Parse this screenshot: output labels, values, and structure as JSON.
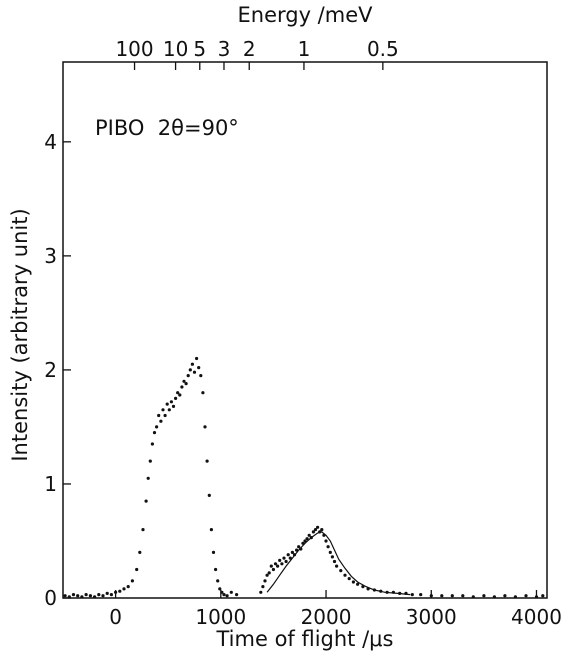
{
  "chart_data": {
    "type": "scatter",
    "annotation": "PIBO  2θ=90°",
    "xlabel": "Time of flight  /μs",
    "ylabel": "Intensity (arbitrary unit)",
    "top_axis_label": "Energy  /meV",
    "xlim": [
      -500,
      4100
    ],
    "ylim": [
      0,
      4.7
    ],
    "x_ticks": [
      0,
      1000,
      2000,
      3000,
      4000
    ],
    "x_tick_labels": [
      "0",
      "1000",
      "2000",
      "3000",
      "4000"
    ],
    "y_ticks": [
      0,
      1,
      2,
      3,
      4
    ],
    "y_tick_labels": [
      "0",
      "1",
      "2",
      "3",
      "4"
    ],
    "top_ticks": [
      {
        "label": "100",
        "time": 180
      },
      {
        "label": "10",
        "time": 570
      },
      {
        "label": "5",
        "time": 800
      },
      {
        "label": "3",
        "time": 1030
      },
      {
        "label": "2",
        "time": 1270
      },
      {
        "label": "1",
        "time": 1790
      },
      {
        "label": "0.5",
        "time": 2540
      }
    ],
    "grid": false,
    "series": [
      {
        "name": "",
        "points": [
          [
            -480,
            0.02
          ],
          [
            -440,
            0.01
          ],
          [
            -400,
            0.03
          ],
          [
            -360,
            0.02
          ],
          [
            -320,
            0.01
          ],
          [
            -280,
            0.03
          ],
          [
            -240,
            0.02
          ],
          [
            -200,
            0.01
          ],
          [
            -160,
            0.03
          ],
          [
            -120,
            0.02
          ],
          [
            -80,
            0.04
          ],
          [
            -40,
            0.03
          ],
          [
            0,
            0.05
          ],
          [
            40,
            0.06
          ],
          [
            80,
            0.08
          ],
          [
            120,
            0.1
          ],
          [
            160,
            0.15
          ],
          [
            200,
            0.25
          ],
          [
            230,
            0.4
          ],
          [
            260,
            0.6
          ],
          [
            290,
            0.85
          ],
          [
            310,
            1.05
          ],
          [
            330,
            1.2
          ],
          [
            350,
            1.35
          ],
          [
            370,
            1.45
          ],
          [
            390,
            1.5
          ],
          [
            410,
            1.6
          ],
          [
            430,
            1.55
          ],
          [
            450,
            1.65
          ],
          [
            470,
            1.6
          ],
          [
            490,
            1.7
          ],
          [
            510,
            1.65
          ],
          [
            530,
            1.72
          ],
          [
            550,
            1.68
          ],
          [
            570,
            1.75
          ],
          [
            590,
            1.8
          ],
          [
            610,
            1.78
          ],
          [
            630,
            1.85
          ],
          [
            650,
            1.9
          ],
          [
            670,
            1.88
          ],
          [
            690,
            1.95
          ],
          [
            710,
            2.0
          ],
          [
            730,
            2.05
          ],
          [
            750,
            1.98
          ],
          [
            770,
            2.1
          ],
          [
            790,
            2.02
          ],
          [
            810,
            1.95
          ],
          [
            830,
            1.8
          ],
          [
            850,
            1.5
          ],
          [
            870,
            1.2
          ],
          [
            890,
            0.9
          ],
          [
            910,
            0.6
          ],
          [
            930,
            0.4
          ],
          [
            950,
            0.25
          ],
          [
            970,
            0.15
          ],
          [
            990,
            0.08
          ],
          [
            1010,
            0.05
          ],
          [
            1030,
            0.03
          ],
          [
            1060,
            0.02
          ],
          [
            1100,
            0.05
          ],
          [
            1150,
            0.03
          ],
          [
            1380,
            0.05
          ],
          [
            1400,
            0.1
          ],
          [
            1420,
            0.15
          ],
          [
            1440,
            0.2
          ],
          [
            1460,
            0.22
          ],
          [
            1480,
            0.28
          ],
          [
            1500,
            0.25
          ],
          [
            1520,
            0.3
          ],
          [
            1540,
            0.28
          ],
          [
            1560,
            0.33
          ],
          [
            1580,
            0.3
          ],
          [
            1600,
            0.35
          ],
          [
            1620,
            0.32
          ],
          [
            1640,
            0.38
          ],
          [
            1660,
            0.35
          ],
          [
            1680,
            0.4
          ],
          [
            1700,
            0.38
          ],
          [
            1720,
            0.42
          ],
          [
            1740,
            0.45
          ],
          [
            1760,
            0.43
          ],
          [
            1780,
            0.48
          ],
          [
            1800,
            0.5
          ],
          [
            1820,
            0.52
          ],
          [
            1840,
            0.55
          ],
          [
            1860,
            0.53
          ],
          [
            1880,
            0.58
          ],
          [
            1900,
            0.6
          ],
          [
            1920,
            0.62
          ],
          [
            1940,
            0.58
          ],
          [
            1960,
            0.6
          ],
          [
            1980,
            0.55
          ],
          [
            2000,
            0.5
          ],
          [
            2020,
            0.45
          ],
          [
            2040,
            0.4
          ],
          [
            2060,
            0.36
          ],
          [
            2080,
            0.32
          ],
          [
            2100,
            0.28
          ],
          [
            2140,
            0.24
          ],
          [
            2180,
            0.2
          ],
          [
            2220,
            0.17
          ],
          [
            2260,
            0.14
          ],
          [
            2300,
            0.12
          ],
          [
            2350,
            0.1
          ],
          [
            2400,
            0.08
          ],
          [
            2460,
            0.07
          ],
          [
            2520,
            0.06
          ],
          [
            2580,
            0.05
          ],
          [
            2640,
            0.05
          ],
          [
            2700,
            0.04
          ],
          [
            2760,
            0.04
          ],
          [
            2820,
            0.03
          ],
          [
            2900,
            0.03
          ],
          [
            3000,
            0.02
          ],
          [
            3100,
            0.02
          ],
          [
            3200,
            0.02
          ],
          [
            3300,
            0.02
          ],
          [
            3400,
            0.01
          ],
          [
            3500,
            0.02
          ],
          [
            3600,
            0.01
          ],
          [
            3700,
            0.02
          ],
          [
            3800,
            0.01
          ],
          [
            3900,
            0.02
          ],
          [
            4000,
            0.01
          ],
          [
            4060,
            0.02
          ]
        ],
        "color": "#111111"
      },
      {
        "name": "",
        "type": "line",
        "points": [
          [
            1440,
            0.05
          ],
          [
            1500,
            0.12
          ],
          [
            1560,
            0.2
          ],
          [
            1620,
            0.28
          ],
          [
            1680,
            0.35
          ],
          [
            1740,
            0.42
          ],
          [
            1800,
            0.48
          ],
          [
            1860,
            0.53
          ],
          [
            1920,
            0.57
          ],
          [
            1960,
            0.58
          ],
          [
            2000,
            0.55
          ],
          [
            2040,
            0.5
          ],
          [
            2080,
            0.42
          ],
          [
            2120,
            0.34
          ],
          [
            2180,
            0.26
          ],
          [
            2240,
            0.19
          ],
          [
            2300,
            0.14
          ],
          [
            2380,
            0.1
          ],
          [
            2460,
            0.07
          ],
          [
            2560,
            0.05
          ],
          [
            2680,
            0.04
          ],
          [
            2800,
            0.03
          ]
        ],
        "color": "#111111"
      }
    ]
  }
}
